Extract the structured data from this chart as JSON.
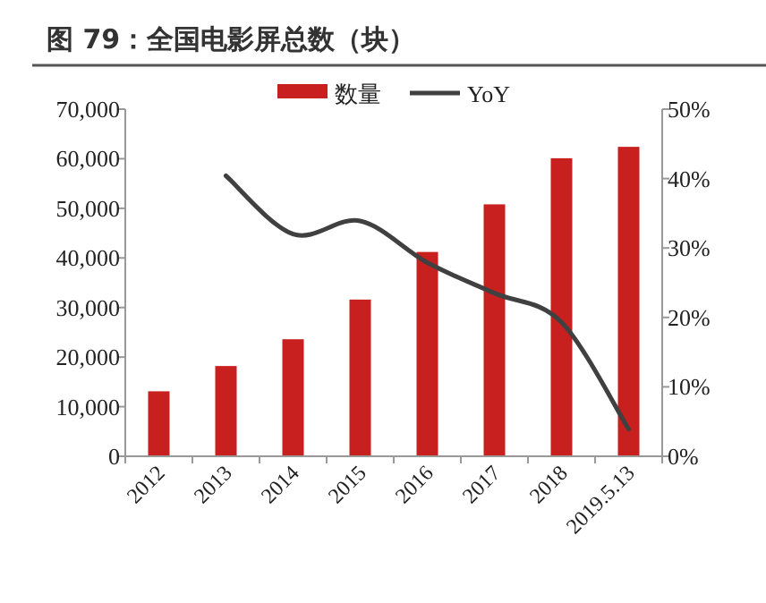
{
  "chart_data": {
    "type": "bar",
    "title": "图 79：全国电影屏总数（块）",
    "categories": [
      "2012",
      "2013",
      "2014",
      "2015",
      "2016",
      "2017",
      "2018",
      "2019.5.13"
    ],
    "series": [
      {
        "name": "数量",
        "color": "#c8201f",
        "values": [
          13100,
          18200,
          23600,
          31600,
          41200,
          50800,
          60100,
          62400
        ]
      },
      {
        "name": "YoY",
        "type": "line",
        "axis": "y2",
        "color": "#404040",
        "values": [
          null,
          40.4,
          32.0,
          33.9,
          27.9,
          23.5,
          19.3,
          3.9
        ]
      }
    ],
    "ylim": [
      0,
      70000
    ],
    "yticks": [
      {
        "value": 0,
        "label": "0"
      },
      {
        "value": 10000,
        "label": "10,000"
      },
      {
        "value": 20000,
        "label": "20,000"
      },
      {
        "value": 30000,
        "label": "30,000"
      },
      {
        "value": 40000,
        "label": "40,000"
      },
      {
        "value": 50000,
        "label": "50,000"
      },
      {
        "value": 60000,
        "label": "60,000"
      },
      {
        "value": 70000,
        "label": "70,000"
      }
    ],
    "y2lim": [
      0,
      50
    ],
    "y2ticks": [
      {
        "value": 0,
        "label": "0%"
      },
      {
        "value": 10,
        "label": "10%"
      },
      {
        "value": 20,
        "label": "20%"
      },
      {
        "value": 30,
        "label": "30%"
      },
      {
        "value": 40,
        "label": "40%"
      },
      {
        "value": 50,
        "label": "50%"
      }
    ],
    "legend": "top",
    "grid": false
  }
}
